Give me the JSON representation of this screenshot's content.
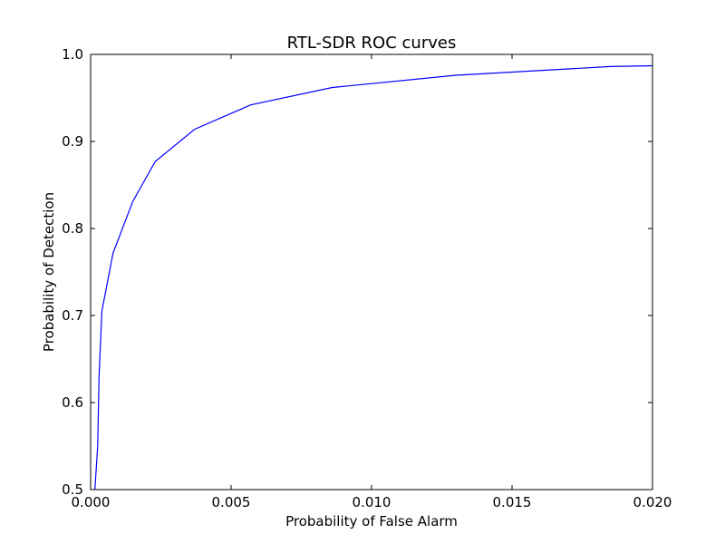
{
  "chart_data": {
    "type": "line",
    "title": "RTL-SDR ROC curves",
    "xlabel": "Probability of False Alarm",
    "ylabel": "Probability of Detection",
    "xlim": [
      0.0,
      0.02
    ],
    "ylim": [
      0.5,
      1.0
    ],
    "xticks": [
      "0.000",
      "0.005",
      "0.010",
      "0.015",
      "0.020"
    ],
    "yticks": [
      "0.5",
      "0.6",
      "0.7",
      "0.8",
      "0.9",
      "1.0"
    ],
    "grid": false,
    "legend": "none",
    "series": [
      {
        "color": "#0000ff",
        "x": [
          0.00015,
          0.00025,
          0.0003,
          0.0004,
          0.0008,
          0.0015,
          0.0023,
          0.0037,
          0.0057,
          0.0086,
          0.013,
          0.0185,
          0.02
        ],
        "y": [
          0.5,
          0.55,
          0.63,
          0.705,
          0.772,
          0.831,
          0.877,
          0.914,
          0.942,
          0.962,
          0.976,
          0.986,
          0.987
        ]
      }
    ]
  }
}
